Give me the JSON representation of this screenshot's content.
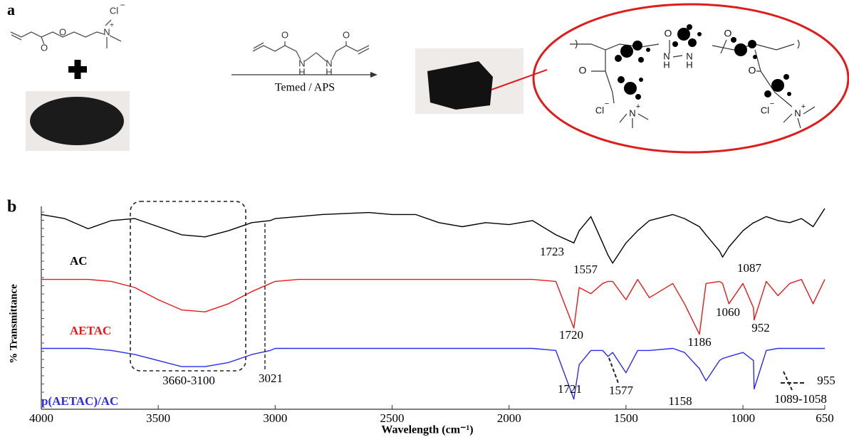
{
  "panel_a": {
    "label": "a",
    "monomer_atoms": [
      "O",
      "O",
      "N",
      "+",
      "Cl",
      "−"
    ],
    "crosslinker_atoms": [
      "O",
      "O",
      "N",
      "H",
      "N",
      "H"
    ],
    "arrow_label": "Temed / APS",
    "product_atoms": [
      "O",
      "O",
      "N",
      "H",
      "N",
      "H",
      "O",
      "O",
      "Cl",
      "−",
      "N",
      "+",
      "Cl",
      "−",
      "N",
      "+"
    ]
  },
  "chart_data": {
    "type": "line",
    "panel_label": "b",
    "xlabel": "Wavelength (cm⁻¹)",
    "ylabel": "% Transmittance",
    "xlim": [
      4000,
      650
    ],
    "xticks": [
      4000,
      3500,
      3000,
      2500,
      2000,
      1500,
      1000,
      650
    ],
    "ylim": [
      0,
      100
    ],
    "x": [
      4000,
      3900,
      3800,
      3700,
      3600,
      3500,
      3400,
      3300,
      3200,
      3100,
      3021,
      3000,
      2900,
      2800,
      2600,
      2500,
      2400,
      2300,
      2200,
      2100,
      2000,
      1900,
      1800,
      1723,
      1700,
      1650,
      1600,
      1577,
      1557,
      1500,
      1450,
      1400,
      1300,
      1250,
      1186,
      1158,
      1100,
      1087,
      1060,
      1000,
      955,
      952,
      900,
      850,
      800,
      750,
      700,
      650
    ],
    "series": [
      {
        "name": "AC",
        "color": "#000000",
        "values": [
          96,
          94,
          89,
          93,
          94,
          90,
          86,
          85,
          88,
          92,
          93,
          94,
          95,
          96,
          97,
          96,
          96,
          92,
          90,
          92,
          91,
          93,
          86,
          82,
          88,
          95,
          82,
          76,
          72,
          82,
          88,
          93,
          96,
          94,
          90,
          86,
          78,
          75,
          80,
          88,
          92,
          92,
          95,
          93,
          92,
          94,
          90,
          99
        ]
      },
      {
        "name": "AETAC",
        "color": "#e8191c",
        "values": [
          64,
          64,
          64,
          63,
          60,
          54,
          49,
          48,
          52,
          58,
          62,
          63,
          64,
          64,
          64,
          64,
          64,
          64,
          64,
          64,
          64,
          64,
          63,
          40,
          60,
          57,
          62,
          63,
          63,
          54,
          64,
          55,
          62,
          52,
          37,
          62,
          63,
          62,
          52,
          62,
          50,
          44,
          63,
          56,
          62,
          64,
          52,
          64
        ]
      },
      {
        "name": "p(AETAC)/AC",
        "color": "#2b2bf0",
        "values": [
          30,
          30,
          30,
          29,
          27,
          24,
          21,
          21,
          23,
          27,
          29,
          30,
          30,
          30,
          30,
          30,
          30,
          30,
          30,
          30,
          30,
          30,
          29,
          5,
          22,
          29,
          29,
          26,
          28,
          18,
          29,
          29,
          30,
          28,
          20,
          14,
          24,
          25,
          26,
          28,
          24,
          10,
          29,
          30,
          30,
          30,
          30,
          30
        ]
      }
    ],
    "annotations": [
      "1723",
      "1557",
      "1087",
      "1720",
      "1186",
      "1060",
      "952",
      "3660-3100",
      "3021",
      "1721",
      "1577",
      "1158",
      "1089-1058",
      "955"
    ]
  }
}
